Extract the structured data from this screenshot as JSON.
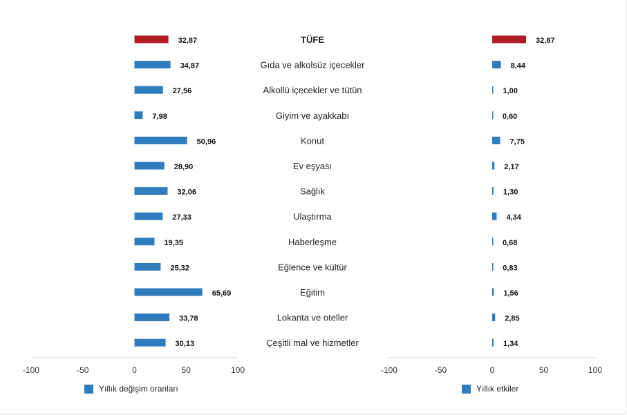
{
  "chart_data": [
    {
      "type": "bar",
      "orientation": "horizontal",
      "name": "Yıllık değişim oranları",
      "categories": [
        "TÜFE",
        "Gıda ve alkolsüz içecekler",
        "Alkollü içecekler ve tütün",
        "Giyim ve ayakkabı",
        "Konut",
        "Ev eşyası",
        "Sağlık",
        "Ulaştırma",
        "Haberleşme",
        "Eğlence ve kültür",
        "Eğitim",
        "Lokanta ve oteller",
        "Çeşitli mal ve hizmetler"
      ],
      "values": [
        32.87,
        34.87,
        27.56,
        7.98,
        50.96,
        28.9,
        32.06,
        27.33,
        19.35,
        25.32,
        65.69,
        33.78,
        30.13
      ],
      "value_labels": [
        "32,87",
        "34,87",
        "27,56",
        "7,98",
        "50,96",
        "28,90",
        "32,06",
        "27,33",
        "19,35",
        "25,32",
        "65,69",
        "33,78",
        "30,13"
      ],
      "xlim": [
        -100,
        100
      ],
      "ticks": [
        "-100",
        "-50",
        "0",
        "50",
        "100"
      ],
      "legend": "Yıllık değişim oranları",
      "grid": false
    },
    {
      "type": "bar",
      "orientation": "horizontal",
      "name": "Yıllık etkiler",
      "categories": [
        "TÜFE",
        "Gıda ve alkolsüz içecekler",
        "Alkollü içecekler ve tütün",
        "Giyim ve ayakkabı",
        "Konut",
        "Ev eşyası",
        "Sağlık",
        "Ulaştırma",
        "Haberleşme",
        "Eğlence ve kültür",
        "Eğitim",
        "Lokanta ve oteller",
        "Çeşitli mal ve hizmetler"
      ],
      "values": [
        32.87,
        8.44,
        1.0,
        0.6,
        7.75,
        2.17,
        1.3,
        4.34,
        0.68,
        0.83,
        1.56,
        2.85,
        1.34
      ],
      "value_labels": [
        "32,87",
        "8,44",
        "1,00",
        "0,60",
        "7,75",
        "2,17",
        "1,30",
        "4,34",
        "0,68",
        "0,83",
        "1,56",
        "2,85",
        "1,34"
      ],
      "xlim": [
        -100,
        100
      ],
      "ticks": [
        "-100",
        "-50",
        "0",
        "50",
        "100"
      ],
      "legend": "Yıllık etkiler",
      "grid": false
    }
  ],
  "colors": {
    "highlight": "#b11c24",
    "bar": "#2e7bbd",
    "axis": "#d0d0d0"
  }
}
